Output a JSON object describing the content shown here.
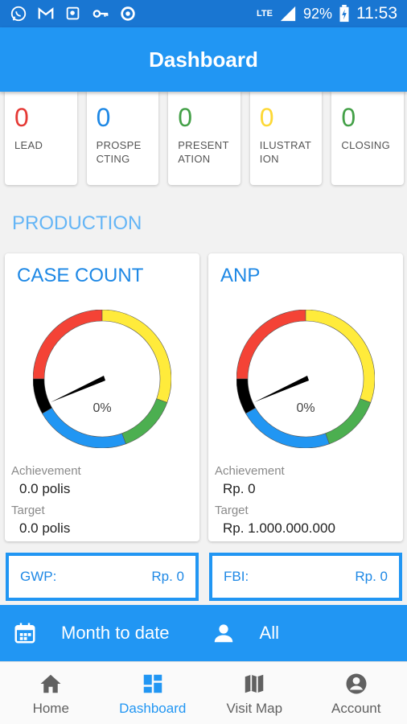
{
  "status_bar": {
    "network": "LTE",
    "battery": "92%",
    "time": "11:53"
  },
  "app_bar": {
    "title": "Dashboard"
  },
  "stats": [
    {
      "value": "0",
      "label": "LEAD",
      "color": "#e53935"
    },
    {
      "value": "0",
      "label": "PROSPECTING",
      "color": "#1e88e5"
    },
    {
      "value": "0",
      "label": "PRESENTATION",
      "color": "#43a047"
    },
    {
      "value": "0",
      "label": "ILUSTRATION",
      "color": "#fdd835"
    },
    {
      "value": "0",
      "label": "CLOSING",
      "color": "#43a047"
    }
  ],
  "production": {
    "title": "PRODUCTION",
    "case_count": {
      "title": "CASE COUNT",
      "percent": "0%",
      "achievement_label": "Achievement",
      "achievement_value": "0.0 polis",
      "target_label": "Target",
      "target_value": "0.0 polis"
    },
    "anp": {
      "title": "ANP",
      "percent": "0%",
      "achievement_label": "Achievement",
      "achievement_value": "Rp. 0",
      "target_label": "Target",
      "target_value": "Rp. 1.000.000.000"
    },
    "gauge_colors": {
      "red": "#f44336",
      "yellow": "#ffeb3b",
      "green": "#4caf50",
      "blue": "#2196f3",
      "black": "#000000"
    }
  },
  "gwp": {
    "label": "GWP:",
    "value": "Rp. 0"
  },
  "fbi": {
    "label": "FBI:",
    "value": "Rp. 0"
  },
  "filter": {
    "date_label": "Month to date",
    "user_label": "All"
  },
  "nav": {
    "items": [
      {
        "label": "Home",
        "icon": "home-icon"
      },
      {
        "label": "Dashboard",
        "icon": "dashboard-icon",
        "active": true
      },
      {
        "label": "Visit Map",
        "icon": "map-icon"
      },
      {
        "label": "Account",
        "icon": "account-icon"
      }
    ]
  }
}
